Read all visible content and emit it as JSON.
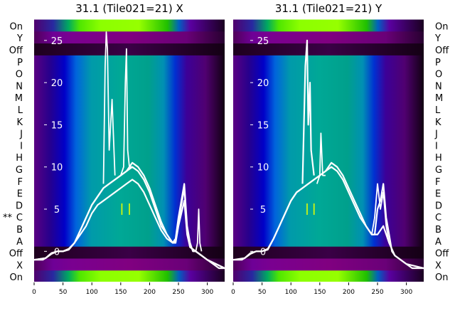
{
  "chart_data": [
    {
      "type": "heatmap",
      "title": "31.1 (Tile021=21) X",
      "row_labels": [
        "On",
        "Y",
        "Off",
        "P",
        "O",
        "N",
        "M",
        "L",
        "K",
        "J",
        "I",
        "H",
        "G",
        "F",
        "E",
        "D",
        "C",
        "B",
        "A",
        "Off",
        "X",
        "On"
      ],
      "row_label_side": "left",
      "marked_row": {
        "label": "C",
        "marker": "**"
      },
      "x_ticks": [
        0,
        50,
        100,
        150,
        200,
        250,
        300
      ],
      "xlim": [
        0,
        330
      ],
      "overlay_ticks": [
        0,
        5,
        10,
        15,
        20,
        25
      ],
      "overlay_ylim": [
        -3.6,
        27.6
      ],
      "series": [
        {
          "x": [
            0,
            15,
            20,
            25,
            30,
            40,
            50,
            60,
            70,
            80,
            90,
            100,
            110,
            120,
            130,
            140,
            150,
            160,
            170,
            180,
            190,
            200,
            210,
            220,
            230,
            235,
            240,
            245,
            250,
            255,
            260,
            265,
            270,
            275,
            280,
            290,
            300,
            310,
            320,
            330
          ],
          "y": [
            -1,
            -1,
            -0.8,
            -0.5,
            -0.2,
            0,
            0,
            0.2,
            1,
            2.5,
            4,
            5.5,
            6.5,
            7.5,
            8,
            8.5,
            9,
            9.5,
            10,
            9.5,
            8.5,
            7,
            5,
            3,
            2,
            1.5,
            1,
            1.5,
            4,
            6,
            8,
            3,
            1,
            0,
            0,
            -0.5,
            -1,
            -1.5,
            -2,
            -2
          ]
        },
        {
          "x": [
            0,
            20,
            30,
            40,
            50,
            60,
            70,
            80,
            90,
            100,
            110,
            120,
            130,
            140,
            150,
            160,
            170,
            180,
            190,
            200,
            210,
            220,
            230,
            240,
            245,
            250,
            255,
            260,
            265,
            270,
            280,
            300,
            330
          ],
          "y": [
            -1,
            -0.8,
            -0.3,
            0,
            0,
            0.3,
            1,
            2.5,
            4,
            5.5,
            6.5,
            7.5,
            8,
            8.5,
            9,
            9.5,
            10.5,
            10,
            9,
            7.5,
            5.5,
            3.5,
            2,
            1,
            1.2,
            3.5,
            5.5,
            7.5,
            2.5,
            0.5,
            0,
            -1,
            -2
          ]
        },
        {
          "x": [
            0,
            20,
            30,
            40,
            50,
            60,
            70,
            80,
            90,
            100,
            110,
            120,
            130,
            140,
            150,
            160,
            170,
            180,
            190,
            200,
            210,
            220,
            230,
            240,
            245,
            250,
            255,
            260,
            265,
            270,
            280,
            300,
            330
          ],
          "y": [
            -1,
            -0.8,
            -0.3,
            0,
            0,
            0.2,
            1,
            2,
            3,
            4.5,
            5.5,
            6,
            6.5,
            7,
            7.5,
            8,
            8.5,
            8,
            7,
            5.5,
            4,
            2.5,
            1.5,
            1,
            1,
            3,
            4.5,
            6,
            2,
            0.5,
            0,
            -1,
            -2
          ]
        },
        {
          "x": [
            120,
            123,
            125,
            127,
            130,
            135,
            140
          ],
          "y": [
            8,
            22,
            26,
            24,
            12,
            18,
            9
          ]
        },
        {
          "x": [
            150,
            155,
            158,
            160,
            162,
            165,
            170
          ],
          "y": [
            9,
            10,
            20,
            24,
            12,
            10,
            10
          ]
        },
        {
          "x": [
            280,
            283,
            285,
            287,
            290
          ],
          "y": [
            0,
            1,
            5,
            1,
            0
          ]
        }
      ],
      "annotations": [
        {
          "x": 152,
          "y": 5
        },
        {
          "x": 165,
          "y": 5
        }
      ],
      "colors": {
        "line": "#ffffff",
        "colormap": "nipy_spectral"
      }
    },
    {
      "type": "heatmap",
      "title": "31.1 (Tile021=21) Y",
      "row_labels": [
        "On",
        "Y",
        "Off",
        "P",
        "O",
        "N",
        "M",
        "L",
        "K",
        "J",
        "I",
        "H",
        "G",
        "F",
        "E",
        "D",
        "C",
        "B",
        "A",
        "Off",
        "X",
        "On"
      ],
      "row_label_side": "right",
      "x_ticks": [
        0,
        50,
        100,
        150,
        200,
        250,
        300
      ],
      "xlim": [
        0,
        330
      ],
      "overlay_ticks": [
        0,
        5,
        10,
        15,
        20,
        25
      ],
      "overlay_ylim": [
        -3.6,
        27.6
      ],
      "series": [
        {
          "x": [
            0,
            15,
            20,
            25,
            30,
            40,
            50,
            60,
            70,
            80,
            90,
            100,
            110,
            120,
            130,
            140,
            150,
            160,
            170,
            180,
            190,
            200,
            210,
            220,
            230,
            240,
            245,
            250,
            255,
            260,
            265,
            270,
            275,
            280,
            290,
            300,
            310,
            320,
            330
          ],
          "y": [
            -1,
            -1,
            -0.8,
            -0.5,
            -0.2,
            0,
            0,
            0.2,
            1.5,
            3,
            4.5,
            6,
            7,
            7.5,
            8,
            8.5,
            9,
            9.5,
            10,
            9.5,
            8.5,
            7,
            5.5,
            4,
            3,
            2,
            2,
            5,
            6,
            8,
            4,
            2,
            0,
            -0.5,
            -1,
            -1.5,
            -2,
            -2,
            -2
          ]
        },
        {
          "x": [
            0,
            20,
            30,
            40,
            50,
            60,
            70,
            80,
            90,
            100,
            110,
            120,
            130,
            140,
            150,
            160,
            170,
            180,
            190,
            200,
            210,
            220,
            230,
            240,
            250,
            260,
            270,
            280,
            300,
            330
          ],
          "y": [
            -1,
            -0.8,
            -0.3,
            0,
            0,
            0.3,
            1.5,
            3,
            4.5,
            6,
            7,
            7.5,
            8,
            8.5,
            9,
            9.5,
            10.5,
            10,
            9,
            7.5,
            6,
            4.5,
            3,
            2,
            2,
            3,
            1,
            -0.5,
            -1.5,
            -2
          ]
        },
        {
          "x": [
            120,
            125,
            128,
            130,
            133,
            135,
            140
          ],
          "y": [
            8,
            22,
            25,
            15,
            20,
            12,
            9
          ]
        },
        {
          "x": [
            145,
            150,
            152,
            155,
            160
          ],
          "y": [
            8,
            9,
            14,
            9,
            9
          ]
        },
        {
          "x": [
            240,
            245,
            250,
            255,
            260,
            265,
            270
          ],
          "y": [
            2,
            4,
            8,
            5,
            7,
            3,
            1
          ]
        }
      ],
      "annotations": [
        {
          "x": 128,
          "y": 5
        },
        {
          "x": 140,
          "y": 5
        }
      ],
      "colors": {
        "line": "#ffffff",
        "colormap": "nipy_spectral"
      }
    }
  ]
}
